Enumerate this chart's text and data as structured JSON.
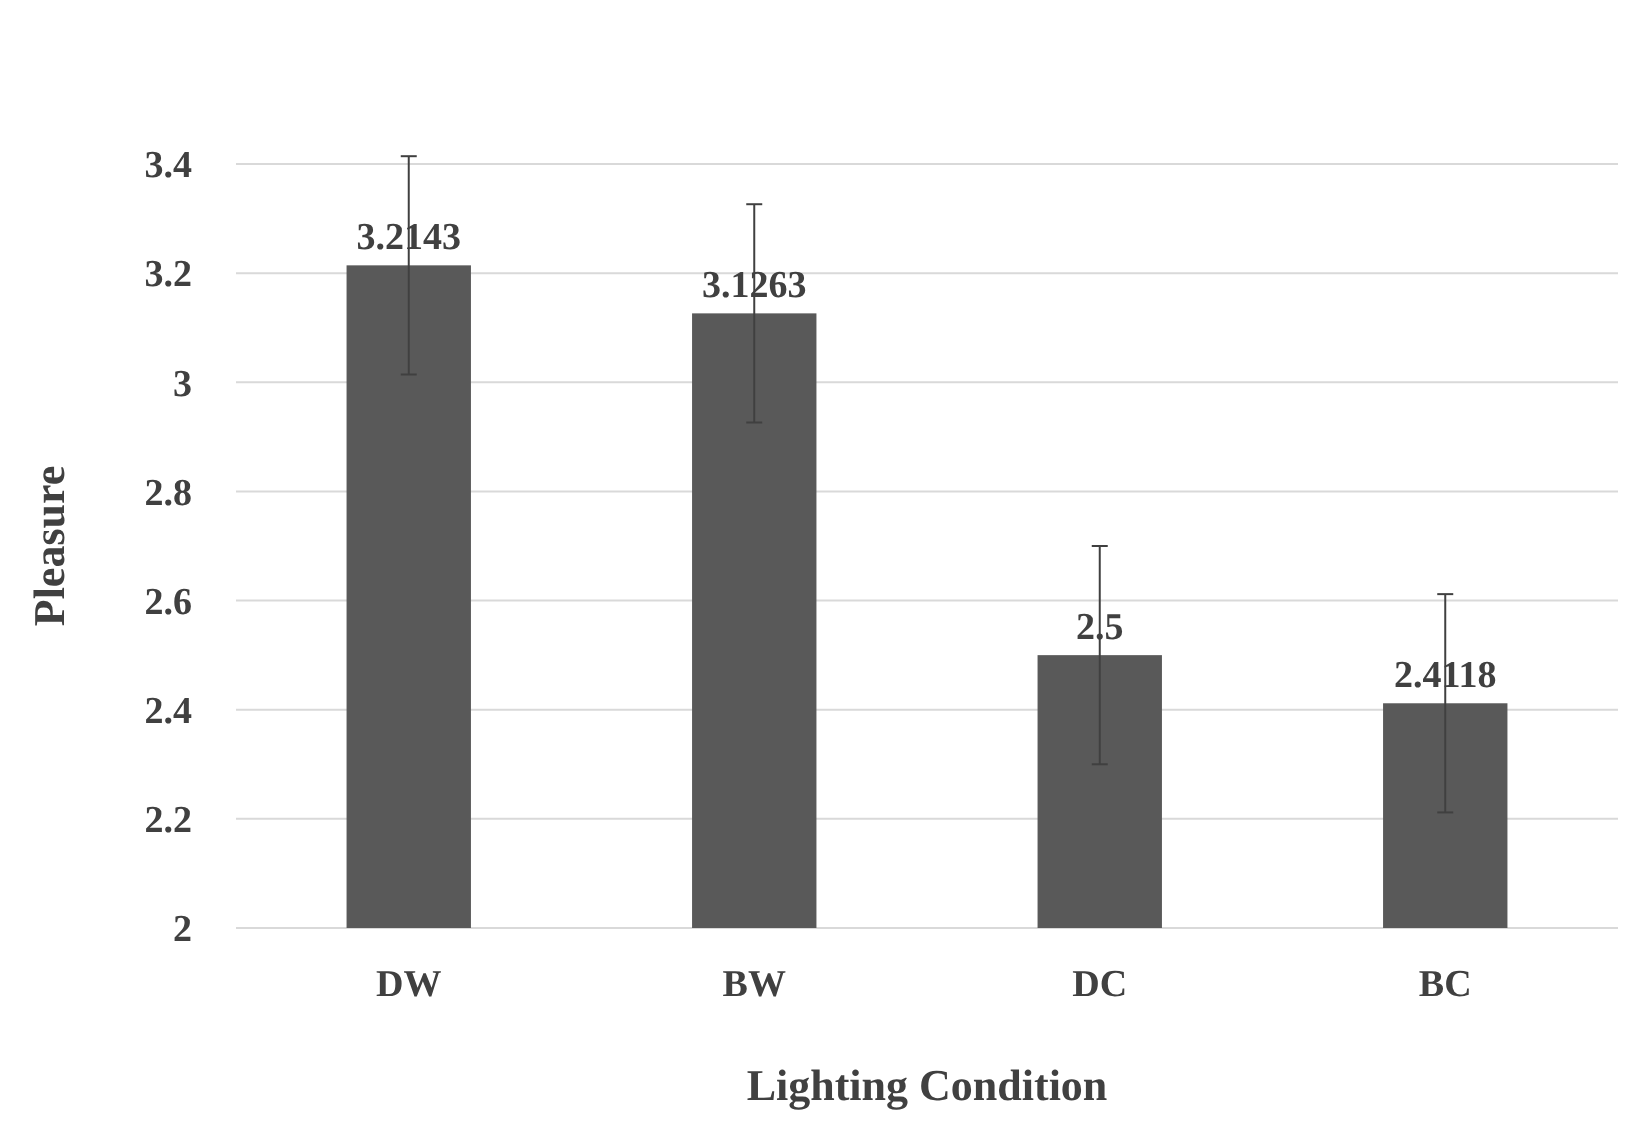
{
  "chart_data": {
    "type": "bar",
    "xlabel": "Lighting Condition",
    "ylabel": "Pleasure",
    "categories": [
      "DW",
      "BW",
      "DC",
      "BC"
    ],
    "values": [
      3.2143,
      3.1263,
      2.5,
      2.4118
    ],
    "errors": [
      0.2,
      0.2,
      0.2,
      0.2
    ],
    "color": "#595959",
    "ylim": [
      2,
      3.4
    ],
    "yticks": [
      2,
      2.2,
      2.4,
      2.6,
      2.8,
      3,
      3.2,
      3.4
    ],
    "grid": "y",
    "data_labels": true
  }
}
